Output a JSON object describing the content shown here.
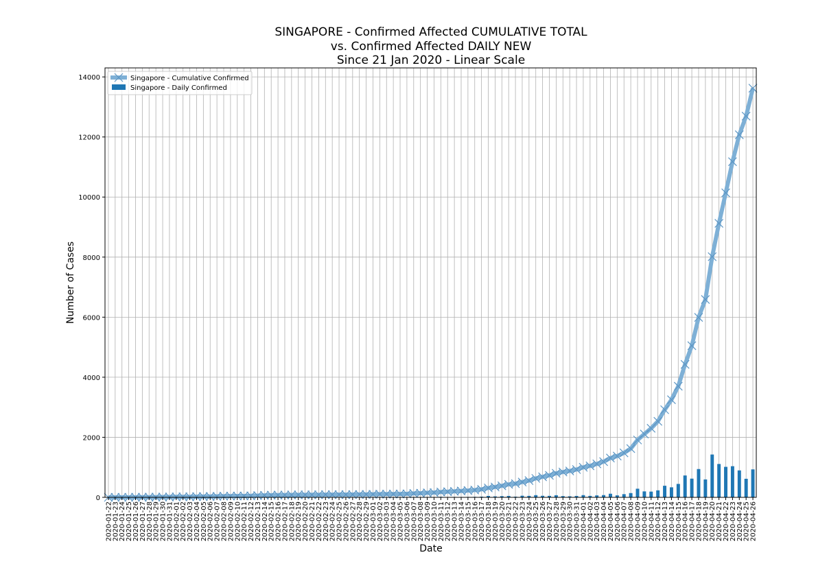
{
  "chart_data": {
    "type": "bar",
    "title_lines": [
      "SINGAPORE - Confirmed Affected CUMULATIVE TOTAL",
      "vs. Confirmed Affected DAILY NEW",
      "Since 21 Jan 2020 - Linear Scale"
    ],
    "xlabel": "Date",
    "ylabel": "Number of Cases",
    "ylim": [
      0,
      14300
    ],
    "yticks": [
      0,
      2000,
      4000,
      6000,
      8000,
      10000,
      12000,
      14000
    ],
    "grid": true,
    "legend_position": "top-left",
    "start_date": "2020-01-22",
    "categories": [
      "2020-01-22",
      "2020-01-23",
      "2020-01-24",
      "2020-01-25",
      "2020-01-26",
      "2020-01-27",
      "2020-01-28",
      "2020-01-29",
      "2020-01-30",
      "2020-01-31",
      "2020-02-01",
      "2020-02-02",
      "2020-02-03",
      "2020-02-04",
      "2020-02-05",
      "2020-02-06",
      "2020-02-07",
      "2020-02-08",
      "2020-02-09",
      "2020-02-10",
      "2020-02-11",
      "2020-02-12",
      "2020-02-13",
      "2020-02-14",
      "2020-02-15",
      "2020-02-16",
      "2020-02-17",
      "2020-02-18",
      "2020-02-19",
      "2020-02-20",
      "2020-02-21",
      "2020-02-22",
      "2020-02-23",
      "2020-02-24",
      "2020-02-25",
      "2020-02-26",
      "2020-02-27",
      "2020-02-28",
      "2020-02-29",
      "2020-03-01",
      "2020-03-02",
      "2020-03-03",
      "2020-03-04",
      "2020-03-05",
      "2020-03-06",
      "2020-03-07",
      "2020-03-08",
      "2020-03-09",
      "2020-03-10",
      "2020-03-11",
      "2020-03-12",
      "2020-03-13",
      "2020-03-14",
      "2020-03-15",
      "2020-03-16",
      "2020-03-17",
      "2020-03-18",
      "2020-03-19",
      "2020-03-20",
      "2020-03-21",
      "2020-03-22",
      "2020-03-23",
      "2020-03-24",
      "2020-03-25",
      "2020-03-26",
      "2020-03-27",
      "2020-03-28",
      "2020-03-29",
      "2020-03-30",
      "2020-03-31",
      "2020-04-01",
      "2020-04-02",
      "2020-04-03",
      "2020-04-04",
      "2020-04-05",
      "2020-04-06",
      "2020-04-07",
      "2020-04-08",
      "2020-04-09",
      "2020-04-10",
      "2020-04-11",
      "2020-04-12",
      "2020-04-13",
      "2020-04-14",
      "2020-04-15",
      "2020-04-16",
      "2020-04-17",
      "2020-04-18",
      "2020-04-19",
      "2020-04-20",
      "2020-04-21",
      "2020-04-22",
      "2020-04-23",
      "2020-04-24",
      "2020-04-25",
      "2020-04-26"
    ],
    "series": [
      {
        "name": "Singapore - Cumulative Confirmed",
        "kind": "line",
        "color": "#7eb0d6",
        "marker_color": "#5d96c4",
        "values": [
          0,
          1,
          3,
          3,
          4,
          5,
          7,
          7,
          10,
          13,
          16,
          18,
          18,
          24,
          28,
          30,
          33,
          40,
          43,
          45,
          47,
          50,
          58,
          67,
          72,
          75,
          77,
          81,
          84,
          84,
          85,
          86,
          89,
          89,
          90,
          91,
          93,
          96,
          98,
          102,
          106,
          108,
          110,
          112,
          117,
          130,
          138,
          150,
          160,
          178,
          187,
          200,
          212,
          226,
          243,
          266,
          313,
          345,
          385,
          432,
          455,
          509,
          558,
          631,
          683,
          732,
          802,
          844,
          879,
          926,
          1000,
          1049,
          1114,
          1189,
          1309,
          1375,
          1481,
          1623,
          1910,
          2108,
          2299,
          2532,
          2918,
          3252,
          3699,
          4427,
          5050,
          5992,
          6588,
          8014,
          9125,
          10141,
          11178,
          12075,
          12693,
          13624
        ]
      },
      {
        "name": "Singapore - Daily Confirmed",
        "kind": "bar",
        "color": "#1f77b4",
        "values": [
          0,
          1,
          2,
          0,
          1,
          1,
          2,
          0,
          3,
          3,
          3,
          2,
          0,
          6,
          4,
          2,
          3,
          7,
          3,
          2,
          2,
          3,
          8,
          9,
          5,
          3,
          2,
          4,
          3,
          0,
          1,
          1,
          3,
          0,
          1,
          1,
          2,
          3,
          2,
          4,
          4,
          2,
          2,
          2,
          5,
          13,
          8,
          12,
          10,
          18,
          9,
          13,
          12,
          14,
          17,
          23,
          47,
          32,
          40,
          47,
          23,
          54,
          49,
          73,
          52,
          49,
          70,
          42,
          35,
          47,
          74,
          49,
          65,
          75,
          120,
          66,
          106,
          142,
          287,
          198,
          191,
          233,
          386,
          334,
          447,
          728,
          623,
          942,
          596,
          1426,
          1111,
          1016,
          1037,
          897,
          618,
          931
        ]
      }
    ]
  }
}
